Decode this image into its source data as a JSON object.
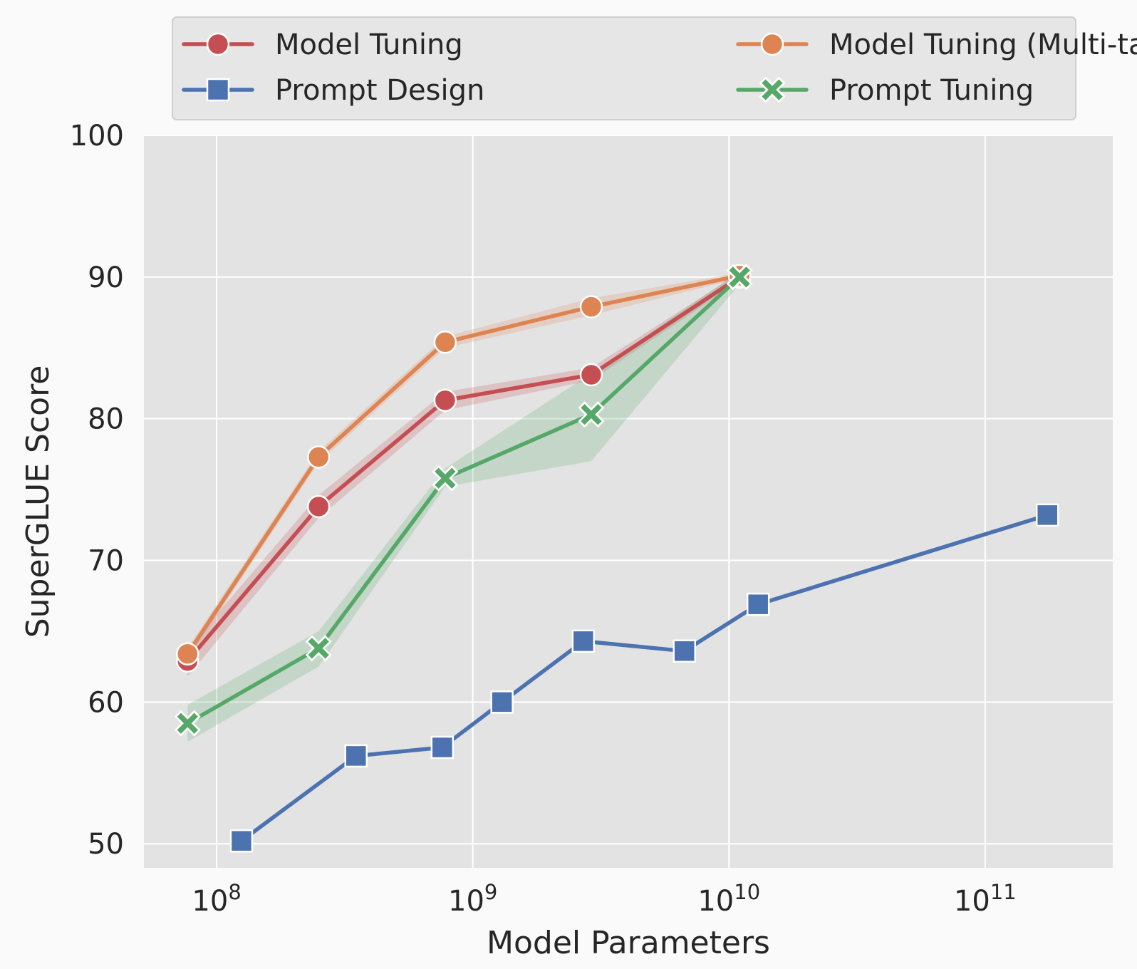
{
  "chart_data": {
    "type": "line",
    "title": "",
    "xlabel": "Model Parameters",
    "ylabel": "SuperGLUE Score",
    "x_scale": "log",
    "xlim": [
      52000000,
      315000000000
    ],
    "ylim": [
      48.3,
      100
    ],
    "x_ticks": [
      {
        "value": 100000000,
        "base": "10",
        "exp": "8"
      },
      {
        "value": 1000000000,
        "base": "10",
        "exp": "9"
      },
      {
        "value": 10000000000,
        "base": "10",
        "exp": "10"
      },
      {
        "value": 100000000000,
        "base": "10",
        "exp": "11"
      }
    ],
    "y_ticks": [
      "50",
      "60",
      "70",
      "80",
      "90",
      "100"
    ],
    "grid": true,
    "legend_position": "top",
    "series": [
      {
        "name": "Model Tuning",
        "color": "#c44e52",
        "marker": "circle",
        "x": [
          77000000,
          250000000,
          780000000,
          2900000000,
          11000000000
        ],
        "y": [
          62.9,
          73.8,
          81.3,
          83.1,
          90.0
        ],
        "band_low": [
          61.8,
          73.0,
          80.6,
          82.7,
          89.7
        ],
        "band_high": [
          63.8,
          74.6,
          81.9,
          83.6,
          90.3
        ]
      },
      {
        "name": "Prompt Design",
        "color": "#4c72b0",
        "marker": "square",
        "x": [
          125000000,
          350000000,
          760000000,
          1300000000,
          2700000000,
          6700000000,
          13000000000,
          175000000000
        ],
        "y": [
          50.2,
          56.2,
          56.8,
          60.0,
          64.3,
          63.6,
          66.9,
          73.2
        ]
      },
      {
        "name": "Model Tuning (Multi-task)",
        "color": "#dd8452",
        "marker": "circle",
        "x": [
          77000000,
          250000000,
          780000000,
          2900000000,
          11000000000
        ],
        "y": [
          63.4,
          77.3,
          85.4,
          87.9,
          90.1
        ],
        "band_low": [
          63.0,
          76.9,
          85.0,
          87.3,
          89.9
        ],
        "band_high": [
          63.8,
          77.7,
          85.8,
          88.5,
          90.3
        ]
      },
      {
        "name": "Prompt Tuning",
        "color": "#55a868",
        "marker": "x",
        "x": [
          77000000,
          250000000,
          780000000,
          2900000000,
          11000000000
        ],
        "y": [
          58.5,
          63.8,
          75.8,
          80.3,
          90.0
        ],
        "band_low": [
          57.2,
          62.5,
          75.2,
          77.0,
          89.5
        ],
        "band_high": [
          59.8,
          65.0,
          76.5,
          83.2,
          90.4
        ]
      }
    ]
  }
}
